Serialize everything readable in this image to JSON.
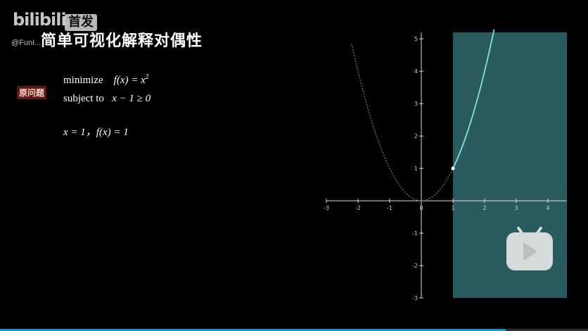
{
  "brand": {
    "logo_text": "bilibili",
    "logo_tag": "首发",
    "handle": "@FunI..."
  },
  "video": {
    "title": "简单可视化解释对偶性",
    "label": "原问题",
    "lines": {
      "objective_word": "minimize",
      "objective_expr": "f(x) = x",
      "objective_power": "2",
      "constraint_word": "subject to",
      "constraint_expr": "x − 1 ≥ 0",
      "solution_expr": "x = 1，f(x) = 1"
    },
    "progress_fraction": 0.86
  },
  "chart_data": {
    "type": "line",
    "x_ticks": [
      -3,
      -2,
      -1,
      0,
      1,
      2,
      3,
      4
    ],
    "y_ticks": [
      -3,
      -2,
      -1,
      0,
      1,
      2,
      3,
      4,
      5
    ],
    "xlim": [
      -3,
      4.6
    ],
    "ylim": [
      -3,
      5.2
    ],
    "feasible_region": {
      "x_min": 1,
      "x_max": 4.6
    },
    "series": [
      {
        "style": "dashed",
        "x_range": [
          -2.2,
          1
        ],
        "formula": "x^2"
      },
      {
        "style": "solid",
        "x_range": [
          1,
          2.3
        ],
        "formula": "x^2"
      }
    ],
    "optimum_point": {
      "x": 1,
      "y": 1
    },
    "colors": {
      "region": "#2a5c5f",
      "curve": "#7fe3e7",
      "curve_dashed": "#4a8a8c",
      "axis": "#dddddd",
      "point": "#ffffff"
    }
  },
  "controls": {
    "play_icon": "play-icon"
  }
}
